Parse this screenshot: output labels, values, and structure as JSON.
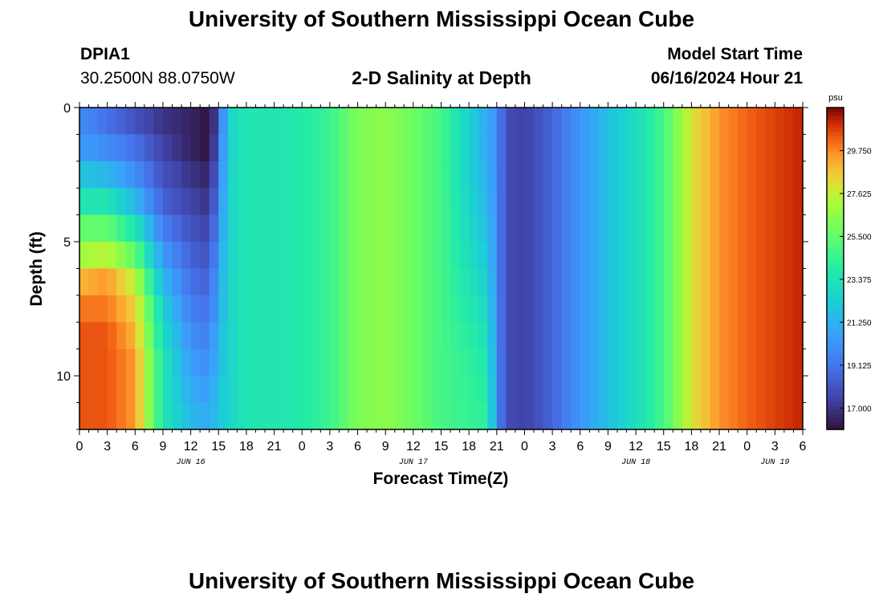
{
  "header": {
    "title": "University of Southern Mississippi Ocean Cube",
    "station_id": "DPIA1",
    "station_coords": "30.2500N  88.0750W",
    "plot_title": "2-D Salinity at Depth",
    "start_label": "Model Start Time",
    "start_value": "06/16/2024 Hour 21"
  },
  "footer": {
    "title": "University of Southern Mississippi Ocean Cube"
  },
  "chart_data": {
    "type": "heatmap",
    "title": "2-D Salinity at Depth",
    "xlabel": "Forecast Time(Z)",
    "ylabel": "Depth (ft)",
    "x_unit": "hour of day (Z), 3-hourly samples, 06/16 00Z to 06/19 06Z",
    "x_tick_labels": [
      "0",
      "3",
      "6",
      "9",
      "12",
      "15",
      "18",
      "21",
      "0",
      "3",
      "6",
      "9",
      "12",
      "15",
      "18",
      "21",
      "0",
      "3",
      "6",
      "9",
      "12",
      "15",
      "18",
      "21",
      "0",
      "3",
      "6"
    ],
    "date_labels": [
      {
        "text": "JUN 16",
        "tick_index": 4
      },
      {
        "text": "JUN 17",
        "tick_index": 12
      },
      {
        "text": "JUN 18",
        "tick_index": 20
      },
      {
        "text": "JUN 19",
        "tick_index": 25
      }
    ],
    "y_ticks": [
      0,
      5,
      10
    ],
    "ylim": [
      0,
      12
    ],
    "y_inverted": true,
    "colorbar": {
      "unit": "psu",
      "min": 15.94,
      "max": 31.88,
      "tick_labels": [
        "29.750",
        "27.625",
        "25.500",
        "23.375",
        "21.250",
        "19.125",
        "17.000"
      ],
      "tick_values": [
        29.75,
        27.625,
        25.5,
        23.375,
        21.25,
        19.125,
        17.0
      ],
      "colormap": "turbo"
    },
    "keyframes": [
      {
        "hour": 0,
        "profile": [
          20.0,
          20.5,
          22.0,
          23.5,
          25.5,
          27.0,
          29.0,
          30.0,
          30.5,
          30.5,
          30.5,
          30.5
        ]
      },
      {
        "hour": 3,
        "profile": [
          19.0,
          20.0,
          21.5,
          23.5,
          25.5,
          27.5,
          29.5,
          30.0,
          30.5,
          30.5,
          30.5,
          30.5
        ]
      },
      {
        "hour": 6,
        "profile": [
          18.0,
          19.0,
          20.0,
          21.5,
          23.5,
          25.5,
          27.5,
          28.5,
          29.0,
          29.5,
          29.5,
          29.5
        ]
      },
      {
        "hour": 9,
        "profile": [
          17.0,
          17.5,
          18.0,
          18.5,
          19.5,
          20.5,
          21.5,
          22.5,
          23.0,
          23.5,
          23.5,
          23.5
        ]
      },
      {
        "hour": 12,
        "profile": [
          16.5,
          16.5,
          17.0,
          17.5,
          18.0,
          18.5,
          19.0,
          19.5,
          20.0,
          20.5,
          21.0,
          21.5
        ]
      },
      {
        "hour": 14,
        "profile": [
          16.0,
          16.0,
          16.5,
          17.0,
          17.5,
          18.0,
          18.5,
          19.0,
          19.5,
          20.0,
          20.5,
          21.0
        ]
      },
      {
        "hour": 15,
        "profile": [
          18.0,
          18.5,
          19.0,
          19.5,
          20.0,
          20.5,
          21.0,
          21.0,
          21.5,
          21.5,
          22.0,
          22.0
        ]
      },
      {
        "hour": 16,
        "profile": [
          22.5,
          22.5,
          22.5,
          22.5,
          22.5,
          22.5,
          22.5,
          22.5,
          22.5,
          22.5,
          22.5,
          22.5
        ]
      },
      {
        "hour": 18,
        "profile": [
          23.6,
          23.6,
          23.6,
          23.6,
          23.6,
          23.6,
          23.6,
          23.6,
          23.6,
          23.6,
          23.6,
          23.6
        ]
      },
      {
        "hour": 21,
        "profile": [
          23.5,
          23.5,
          23.5,
          23.5,
          23.5,
          23.5,
          23.5,
          23.5,
          23.5,
          23.5,
          23.5,
          23.5
        ]
      },
      {
        "hour": 24,
        "profile": [
          23.8,
          23.8,
          23.8,
          23.8,
          23.8,
          23.8,
          23.8,
          23.8,
          23.8,
          23.8,
          23.8,
          23.8
        ]
      },
      {
        "hour": 27,
        "profile": [
          24.5,
          24.5,
          24.5,
          24.5,
          24.5,
          24.5,
          24.5,
          24.5,
          24.5,
          24.5,
          24.5,
          24.5
        ]
      },
      {
        "hour": 30,
        "profile": [
          26.2,
          26.2,
          26.2,
          26.2,
          26.2,
          26.2,
          26.2,
          26.2,
          26.2,
          26.2,
          26.2,
          26.2
        ]
      },
      {
        "hour": 33,
        "profile": [
          26.6,
          26.6,
          26.6,
          26.6,
          26.6,
          26.6,
          26.6,
          26.6,
          26.6,
          26.6,
          26.6,
          26.6
        ]
      },
      {
        "hour": 36,
        "profile": [
          25.8,
          25.8,
          25.8,
          25.8,
          25.8,
          25.8,
          25.8,
          25.8,
          25.8,
          25.8,
          25.8,
          25.8
        ]
      },
      {
        "hour": 39,
        "profile": [
          24.8,
          24.8,
          24.8,
          24.8,
          24.8,
          24.8,
          24.8,
          24.8,
          24.8,
          24.8,
          24.8,
          24.8
        ]
      },
      {
        "hour": 42,
        "profile": [
          22.5,
          22.5,
          22.5,
          22.7,
          22.9,
          23.1,
          23.4,
          23.7,
          24.0,
          24.2,
          24.3,
          24.4
        ]
      },
      {
        "hour": 44,
        "profile": [
          21.0,
          21.0,
          21.2,
          21.4,
          21.7,
          22.0,
          22.4,
          22.8,
          23.2,
          23.6,
          23.9,
          24.1
        ]
      },
      {
        "hour": 45,
        "profile": [
          20.0,
          20.0,
          20.0,
          20.0,
          20.0,
          20.0,
          20.0,
          20.0,
          20.0,
          20.0,
          20.0,
          20.0
        ]
      },
      {
        "hour": 46,
        "profile": [
          17.8,
          17.8,
          17.8,
          17.8,
          17.8,
          17.8,
          17.8,
          17.8,
          17.8,
          17.8,
          17.8,
          17.8
        ]
      },
      {
        "hour": 48,
        "profile": [
          17.4,
          17.4,
          17.4,
          17.4,
          17.4,
          17.4,
          17.4,
          17.4,
          17.4,
          17.4,
          17.4,
          17.4
        ]
      },
      {
        "hour": 51,
        "profile": [
          18.6,
          18.6,
          18.6,
          18.6,
          18.6,
          18.6,
          18.6,
          18.6,
          18.6,
          18.6,
          18.6,
          18.6
        ]
      },
      {
        "hour": 54,
        "profile": [
          20.3,
          20.3,
          20.3,
          20.3,
          20.3,
          20.3,
          20.3,
          20.3,
          20.3,
          20.3,
          20.3,
          20.3
        ]
      },
      {
        "hour": 57,
        "profile": [
          21.8,
          21.8,
          21.8,
          21.8,
          21.8,
          21.8,
          21.8,
          21.8,
          21.8,
          21.8,
          21.8,
          21.8
        ]
      },
      {
        "hour": 60,
        "profile": [
          23.0,
          23.0,
          23.0,
          23.0,
          23.0,
          23.0,
          23.0,
          23.0,
          23.0,
          23.0,
          23.0,
          23.0
        ]
      },
      {
        "hour": 63,
        "profile": [
          24.8,
          24.8,
          24.8,
          24.8,
          24.8,
          24.8,
          24.8,
          24.8,
          24.8,
          24.8,
          24.8,
          24.8
        ]
      },
      {
        "hour": 66,
        "profile": [
          28.0,
          28.0,
          28.0,
          28.0,
          28.0,
          28.0,
          28.0,
          28.0,
          28.0,
          28.0,
          28.0,
          28.0
        ]
      },
      {
        "hour": 69,
        "profile": [
          29.6,
          29.6,
          29.6,
          29.6,
          29.6,
          29.6,
          29.6,
          29.6,
          29.6,
          29.6,
          29.6,
          29.6
        ]
      },
      {
        "hour": 72,
        "profile": [
          30.3,
          30.3,
          30.3,
          30.3,
          30.3,
          30.3,
          30.3,
          30.3,
          30.3,
          30.3,
          30.3,
          30.3
        ]
      },
      {
        "hour": 75,
        "profile": [
          30.8,
          30.8,
          30.8,
          30.8,
          30.8,
          30.8,
          30.8,
          30.8,
          30.8,
          30.8,
          30.8,
          30.8
        ]
      },
      {
        "hour": 78,
        "profile": [
          31.2,
          31.2,
          31.2,
          31.2,
          31.2,
          31.2,
          31.2,
          31.2,
          31.2,
          31.2,
          31.2,
          31.2
        ]
      }
    ]
  }
}
